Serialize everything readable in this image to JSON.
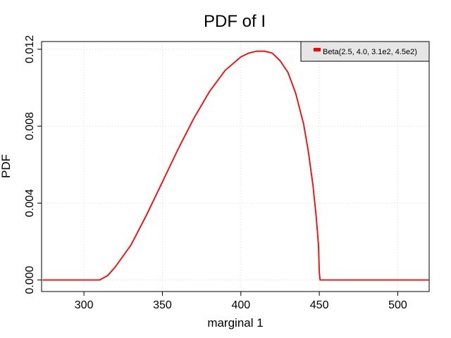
{
  "chart_data": {
    "type": "line",
    "title": "PDF of I",
    "xlabel": "marginal 1",
    "ylabel": "PDF",
    "xlim": [
      273,
      520
    ],
    "ylim": [
      -0.0006,
      0.0124
    ],
    "xticks": [
      300,
      350,
      400,
      450,
      500
    ],
    "yticks": [
      0.0,
      0.004,
      0.008,
      0.012
    ],
    "xtick_labels": [
      "300",
      "350",
      "400",
      "450",
      "500"
    ],
    "ytick_labels": [
      "0.000",
      "0.004",
      "0.008",
      "0.012"
    ],
    "grid": true,
    "legend_position": "top-right",
    "series": [
      {
        "name": "Beta(2.5, 4.0, 3.1e2, 4.5e2)",
        "color": "#ff0000",
        "x": [
          273.6,
          290,
          305,
          310,
          315,
          320,
          330,
          340,
          350,
          360,
          370,
          380,
          390,
          400,
          405,
          410,
          415,
          420,
          425,
          430,
          435,
          440,
          443,
          446,
          448,
          449.5,
          450,
          450.5,
          460,
          480,
          500,
          520
        ],
        "y": [
          0.0,
          0.0,
          0.0,
          0.0,
          0.00022,
          0.00068,
          0.00182,
          0.0034,
          0.0051,
          0.0068,
          0.0084,
          0.0098,
          0.0109,
          0.0116,
          0.0118,
          0.0119,
          0.0119,
          0.0118,
          0.0114,
          0.0108,
          0.0097,
          0.0081,
          0.0067,
          0.0049,
          0.0033,
          0.0018,
          0.0004,
          0.0,
          0.0,
          0.0,
          0.0,
          0.0
        ]
      }
    ]
  }
}
